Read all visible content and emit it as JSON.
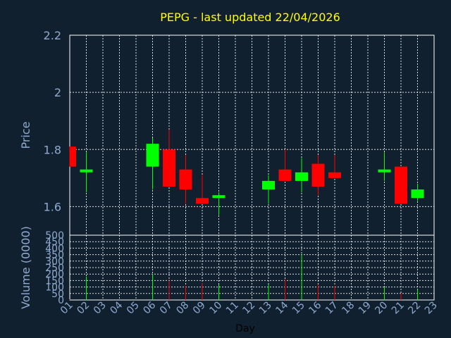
{
  "chart_data": [
    {
      "type": "candlestick",
      "title": "PEPG - last updated 22/04/2026",
      "ylabel": "Price",
      "ylim": [
        1.5,
        2.2
      ],
      "yticks": [
        "2.2",
        "2",
        "1.8",
        "1.6"
      ],
      "ytick_values": [
        2.2,
        2.0,
        1.8,
        1.6
      ],
      "x_ticks": [
        "01",
        "02",
        "03",
        "04",
        "05",
        "06",
        "07",
        "08",
        "09",
        "10",
        "11",
        "12",
        "13",
        "14",
        "15",
        "16",
        "17",
        "18",
        "19",
        "20",
        "21",
        "22",
        "23"
      ],
      "up_color": "#00ff00",
      "down_color": "#ff0000",
      "candles": [
        {
          "day": 1,
          "open": 1.81,
          "close": 1.74,
          "high": 1.81,
          "low": 1.74
        },
        {
          "day": 2,
          "open": 1.72,
          "close": 1.73,
          "high": 1.79,
          "low": 1.65
        },
        {
          "day": 6,
          "open": 1.74,
          "close": 1.82,
          "high": 1.84,
          "low": 1.66
        },
        {
          "day": 7,
          "open": 1.8,
          "close": 1.67,
          "high": 1.87,
          "low": 1.67
        },
        {
          "day": 8,
          "open": 1.73,
          "close": 1.66,
          "high": 1.78,
          "low": 1.61
        },
        {
          "day": 9,
          "open": 1.63,
          "close": 1.61,
          "high": 1.71,
          "low": 1.61
        },
        {
          "day": 10,
          "open": 1.63,
          "close": 1.64,
          "high": 1.65,
          "low": 1.57
        },
        {
          "day": 13,
          "open": 1.66,
          "close": 1.69,
          "high": 1.71,
          "low": 1.61
        },
        {
          "day": 14,
          "open": 1.73,
          "close": 1.69,
          "high": 1.8,
          "low": 1.69
        },
        {
          "day": 15,
          "open": 1.69,
          "close": 1.72,
          "high": 1.77,
          "low": 1.65
        },
        {
          "day": 16,
          "open": 1.75,
          "close": 1.67,
          "high": 1.78,
          "low": 1.64
        },
        {
          "day": 17,
          "open": 1.72,
          "close": 1.7,
          "high": 1.78,
          "low": 1.7
        },
        {
          "day": 20,
          "open": 1.72,
          "close": 1.73,
          "high": 1.79,
          "low": 1.69
        },
        {
          "day": 21,
          "open": 1.74,
          "close": 1.61,
          "high": 1.74,
          "low": 1.61
        },
        {
          "day": 22,
          "open": 1.63,
          "close": 1.66,
          "high": 1.68,
          "low": 1.62
        }
      ]
    },
    {
      "type": "bar",
      "ylabel": "Volume (0000)",
      "xlabel": "Day",
      "ylim": [
        0,
        500
      ],
      "yticks": [
        "500",
        "450",
        "400",
        "350",
        "300",
        "250",
        "200",
        "150",
        "100",
        "50",
        "0"
      ],
      "ytick_values": [
        500,
        450,
        400,
        350,
        300,
        250,
        200,
        150,
        100,
        50,
        0
      ],
      "bars": [
        {
          "day": 1,
          "value": 5,
          "color": "#ff0000"
        },
        {
          "day": 2,
          "value": 180,
          "color": "#00ff00"
        },
        {
          "day": 6,
          "value": 200,
          "color": "#00ff00"
        },
        {
          "day": 7,
          "value": 150,
          "color": "#ff0000"
        },
        {
          "day": 8,
          "value": 110,
          "color": "#ff0000"
        },
        {
          "day": 9,
          "value": 130,
          "color": "#ff0000"
        },
        {
          "day": 10,
          "value": 120,
          "color": "#00ff00"
        },
        {
          "day": 13,
          "value": 120,
          "color": "#00ff00"
        },
        {
          "day": 14,
          "value": 160,
          "color": "#ff0000"
        },
        {
          "day": 15,
          "value": 350,
          "color": "#00ff00"
        },
        {
          "day": 16,
          "value": 120,
          "color": "#ff0000"
        },
        {
          "day": 17,
          "value": 110,
          "color": "#ff0000"
        },
        {
          "day": 20,
          "value": 100,
          "color": "#00ff00"
        },
        {
          "day": 21,
          "value": 50,
          "color": "#ff0000"
        },
        {
          "day": 22,
          "value": 80,
          "color": "#00ff00"
        }
      ]
    }
  ]
}
